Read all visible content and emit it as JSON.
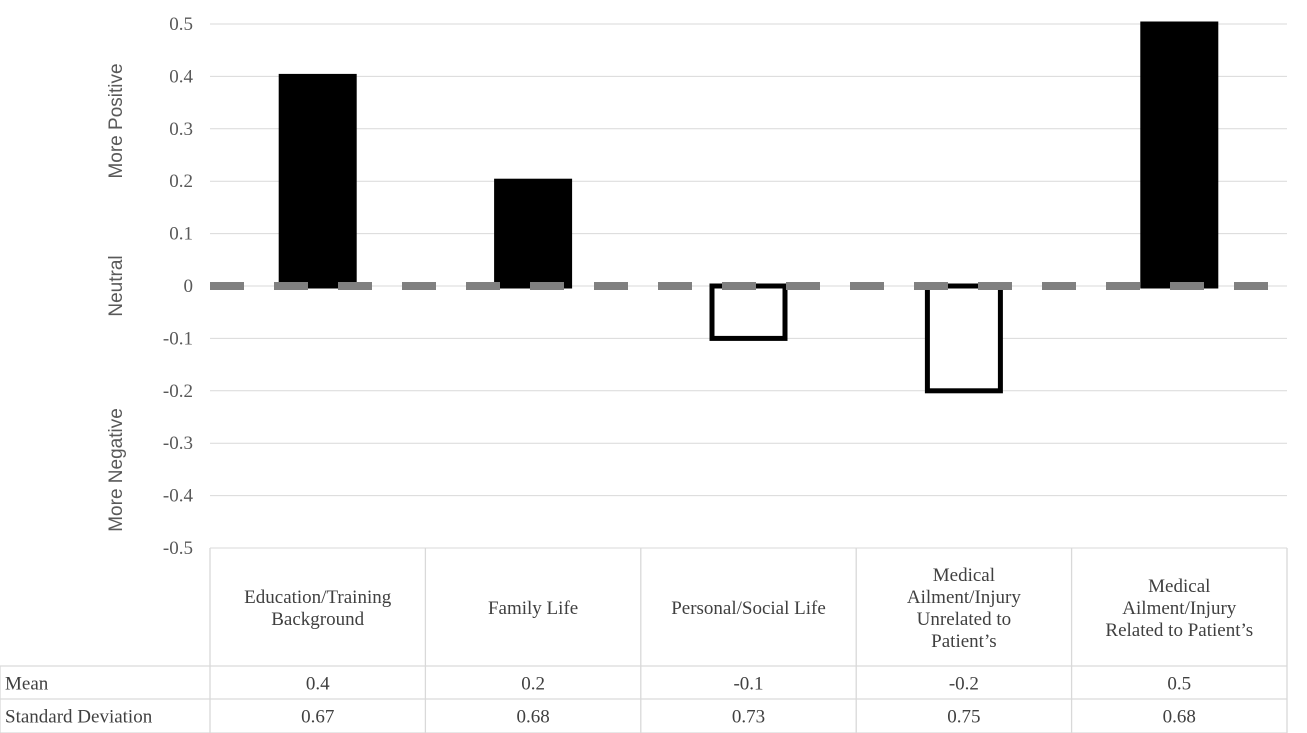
{
  "chart_data": {
    "type": "bar",
    "categories": [
      [
        "Education/Training",
        "Background"
      ],
      [
        "Family Life"
      ],
      [
        "Personal/Social Life"
      ],
      [
        "Medical",
        "Ailment/Injury",
        "Unrelated to",
        "Patient’s"
      ],
      [
        "Medical",
        "Ailment/Injury",
        "Related to Patient’s"
      ]
    ],
    "values": [
      0.4,
      0.2,
      -0.1,
      -0.2,
      0.5
    ],
    "ylim": [
      -0.5,
      0.5
    ],
    "yticks": [
      "0.5",
      "0.4",
      "0.3",
      "0.2",
      "0.1",
      "0",
      "-0.1",
      "-0.2",
      "-0.3",
      "-0.4",
      "-0.5"
    ],
    "ytick_values": [
      0.5,
      0.4,
      0.3,
      0.2,
      0.1,
      0,
      -0.1,
      -0.2,
      -0.3,
      -0.4,
      -0.5
    ],
    "side_labels": {
      "positive": "More Positive",
      "neutral": "Neutral",
      "negative": "More Negative"
    },
    "grid": true,
    "reference_line": {
      "value": 0,
      "style": "dashed",
      "color": "#808080"
    },
    "colors": {
      "positive_fill": "#000000",
      "negative_fill": "#ffffff",
      "bar_stroke": "#000000",
      "grid": "#d9d9d9"
    },
    "table": {
      "rows": [
        {
          "label": "Mean",
          "values": [
            "0.4",
            "0.2",
            "-0.1",
            "-0.2",
            "0.5"
          ]
        },
        {
          "label": "Standard Deviation",
          "values": [
            "0.67",
            "0.68",
            "0.73",
            "0.75",
            "0.68"
          ]
        }
      ]
    }
  }
}
